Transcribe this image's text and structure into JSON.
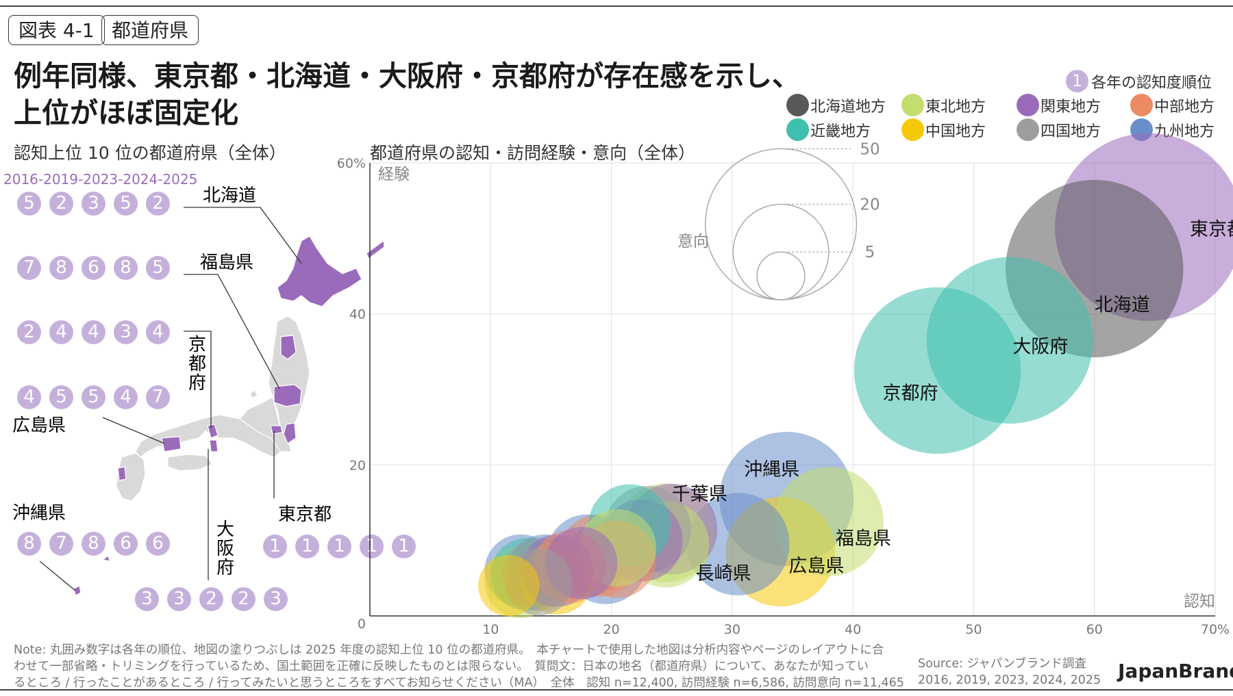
{
  "header": {
    "tag1": "図表 4-1",
    "tag2": "都道府県",
    "headline_line1": "例年同様、東京都・北海道・大阪府・京都府が存在感を示し、",
    "headline_line2": "上位がほぼ固定化"
  },
  "rank_legend": {
    "number": "1",
    "label": "各年の認知度順位"
  },
  "region_legend": [
    {
      "label": "北海道地方",
      "color": "#595959"
    },
    {
      "label": "東北地方",
      "color": "#c3dd6f"
    },
    {
      "label": "関東地方",
      "color": "#9b6bbb"
    },
    {
      "label": "中部地方",
      "color": "#ec8a63"
    },
    {
      "label": "近畿地方",
      "color": "#3fbfad"
    },
    {
      "label": "中国地方",
      "color": "#f6c80a"
    },
    {
      "label": "四国地方",
      "color": "#9d9d9d"
    },
    {
      "label": "九州地方",
      "color": "#6a8ecb"
    }
  ],
  "left_panel": {
    "title": "認知上位 10 位の都道府県（全体）",
    "years_label": "2016-2019-2023-2024-2025",
    "prefectures": [
      {
        "name": "北海道",
        "ranks": [
          "5",
          "2",
          "3",
          "5",
          "2"
        ]
      },
      {
        "name": "福島県",
        "ranks": [
          "7",
          "8",
          "6",
          "8",
          "5"
        ]
      },
      {
        "name": "京都府",
        "ranks": [
          "2",
          "4",
          "4",
          "3",
          "4"
        ]
      },
      {
        "name": "広島県",
        "ranks": [
          "4",
          "5",
          "5",
          "4",
          "7"
        ]
      },
      {
        "name": "沖縄県",
        "ranks": [
          "8",
          "7",
          "8",
          "6",
          "6"
        ]
      },
      {
        "name": "東京都",
        "ranks": [
          "1",
          "1",
          "1",
          "1",
          "1"
        ]
      },
      {
        "name": "大阪府",
        "ranks": [
          "3",
          "3",
          "2",
          "2",
          "3"
        ]
      }
    ],
    "map_color": "#9b6bbb",
    "map_base_color": "#d9d9d9"
  },
  "chart_title": "都道府県の認知・訪問経験・意向（全体）",
  "size_legend": {
    "label": "意向",
    "values": [
      "50",
      "20",
      "5"
    ]
  },
  "chart_data": {
    "type": "scatter",
    "title": "都道府県の認知・訪問経験・意向（全体）",
    "xlabel": "認知",
    "ylabel": "経験",
    "size_label": "意向",
    "xlim": [
      0,
      70
    ],
    "ylim": [
      0,
      60
    ],
    "xticks": [
      "0",
      "10",
      "20",
      "30",
      "40",
      "50",
      "60",
      "70%"
    ],
    "yticks": [
      "0",
      "20",
      "40",
      "60%"
    ],
    "grid": true,
    "points": [
      {
        "name": "東京都",
        "x": 64.5,
        "y": 51.5,
        "size": 47,
        "region": "関東地方",
        "labeled": true
      },
      {
        "name": "北海道",
        "x": 60,
        "y": 46,
        "size": 42,
        "region": "北海道地方",
        "labeled": true
      },
      {
        "name": "大阪府",
        "x": 53,
        "y": 36.5,
        "size": 37,
        "region": "近畿地方",
        "labeled": true
      },
      {
        "name": "京都府",
        "x": 47,
        "y": 32.5,
        "size": 37,
        "region": "近畿地方",
        "labeled": true
      },
      {
        "name": "沖縄県",
        "x": 34.5,
        "y": 15.5,
        "size": 24,
        "region": "九州地方",
        "labeled": true
      },
      {
        "name": "福島県",
        "x": 38,
        "y": 12.5,
        "size": 16,
        "region": "東北地方",
        "labeled": true
      },
      {
        "name": "広島県",
        "x": 34,
        "y": 8.5,
        "size": 16,
        "region": "中国地方",
        "labeled": true
      },
      {
        "name": "長崎県",
        "x": 30.5,
        "y": 9.5,
        "size": 14,
        "region": "九州地方",
        "labeled": true
      },
      {
        "name": "千葉県",
        "x": 25,
        "y": 11.5,
        "size": 11,
        "region": "関東地方",
        "labeled": true
      },
      {
        "name": "",
        "x": 24.5,
        "y": 11,
        "size": 13,
        "region": "東北地方",
        "labeled": false
      },
      {
        "name": "",
        "x": 21.5,
        "y": 12,
        "size": 9,
        "region": "近畿地方",
        "labeled": false
      },
      {
        "name": "",
        "x": 23,
        "y": 11.5,
        "size": 10,
        "region": "四国地方",
        "labeled": false
      },
      {
        "name": "",
        "x": 24.5,
        "y": 9.5,
        "size": 10,
        "region": "東北地方",
        "labeled": false
      },
      {
        "name": "",
        "x": 22.5,
        "y": 10,
        "size": 9,
        "region": "関東地方",
        "labeled": false
      },
      {
        "name": "",
        "x": 20.5,
        "y": 9,
        "size": 8,
        "region": "東北地方",
        "labeled": false
      },
      {
        "name": "",
        "x": 19,
        "y": 8,
        "size": 9,
        "region": "中部地方",
        "labeled": false
      },
      {
        "name": "",
        "x": 20.5,
        "y": 7.5,
        "size": 8,
        "region": "中部地方",
        "labeled": false
      },
      {
        "name": "",
        "x": 19.5,
        "y": 7,
        "size": 9,
        "region": "九州地方",
        "labeled": false
      },
      {
        "name": "",
        "x": 18,
        "y": 8,
        "size": 9,
        "region": "九州地方",
        "labeled": false
      },
      {
        "name": "",
        "x": 17.5,
        "y": 7,
        "size": 7,
        "region": "関東地方",
        "labeled": false
      },
      {
        "name": "",
        "x": 16.5,
        "y": 6.5,
        "size": 7,
        "region": "中部地方",
        "labeled": false
      },
      {
        "name": "",
        "x": 15.5,
        "y": 6,
        "size": 7,
        "region": "関東地方",
        "labeled": false
      },
      {
        "name": "",
        "x": 15.5,
        "y": 5,
        "size": 7,
        "region": "中国地方",
        "labeled": false
      },
      {
        "name": "",
        "x": 14,
        "y": 5.5,
        "size": 7,
        "region": "四国地方",
        "labeled": false
      },
      {
        "name": "",
        "x": 13,
        "y": 5.5,
        "size": 7,
        "region": "近畿地方",
        "labeled": false
      },
      {
        "name": "",
        "x": 14.5,
        "y": 6,
        "size": 7,
        "region": "九州地方",
        "labeled": false
      },
      {
        "name": "",
        "x": 12.5,
        "y": 4.5,
        "size": 7,
        "region": "東北地方",
        "labeled": false
      },
      {
        "name": "",
        "x": 12.5,
        "y": 6,
        "size": 7,
        "region": "九州地方",
        "labeled": false
      },
      {
        "name": "",
        "x": 11.5,
        "y": 4,
        "size": 5,
        "region": "中国地方",
        "labeled": false
      },
      {
        "name": "",
        "x": 14,
        "y": 4.5,
        "size": 6,
        "region": "四国地方",
        "labeled": false
      }
    ]
  },
  "footer": {
    "note": "Note: 丸囲み数字は各年の順位、地図の塗りつぶしは 2025 年度の認知上位 10 位の都道府県。　本チャートで使用した地図は分析内容やページのレイアウトに合\nわせて一部省略・トリミングを行っているため、国土範囲を正確に反映したものとは限らない。　質問文：日本の地名（都道府県）について、あなたが知ってい\nるところ / 行ったことがあるところ / 行ってみたいと思うところをすべてお知らせください（MA）　全体　認知 n=12,400, 訪問経験 n=6,586, 訪問意向 n=11,465",
    "source": "Source: ジャパンブランド調査\n2016, 2019, 2023, 2024, 2025",
    "brand": "JapanBrand"
  }
}
